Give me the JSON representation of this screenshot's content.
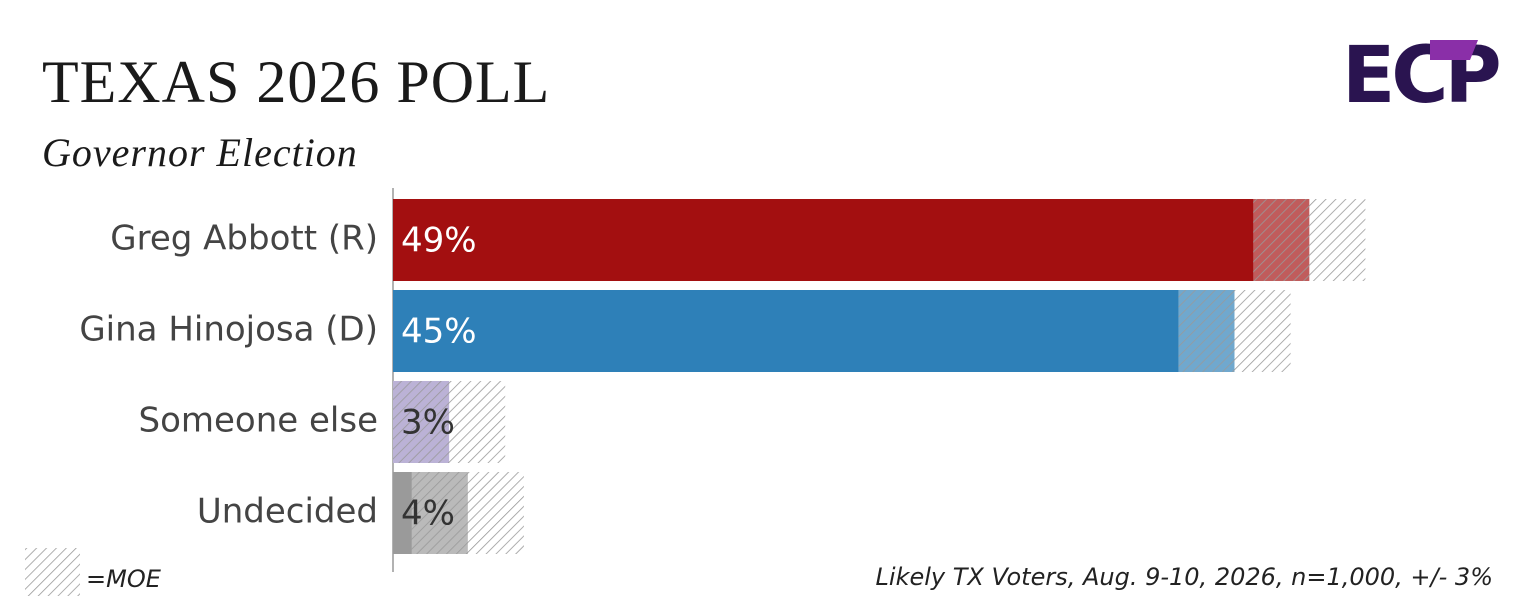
{
  "chart_data": {
    "type": "bar",
    "orientation": "horizontal",
    "title": "TEXAS 2026 POLL",
    "subtitle": "Governor Election",
    "logo": "ECP",
    "categories": [
      "Greg Abbott (R)",
      "Gina Hinojosa (D)",
      "Someone else",
      "Undecided"
    ],
    "values": [
      49,
      45,
      3,
      4
    ],
    "value_labels": [
      "49%",
      "45%",
      "3%",
      "4%"
    ],
    "colors": [
      "#a30f10",
      "#2e80b8",
      "#9b8ec4",
      "#9a9a9a"
    ],
    "value_label_colors": [
      "#ffffff",
      "#ffffff",
      "#333333",
      "#333333"
    ],
    "moe": 3,
    "moe_legend": "=MOE",
    "source": "Likely TX Voters, Aug. 9-10, 2026, n=1,000, +/- 3%"
  }
}
